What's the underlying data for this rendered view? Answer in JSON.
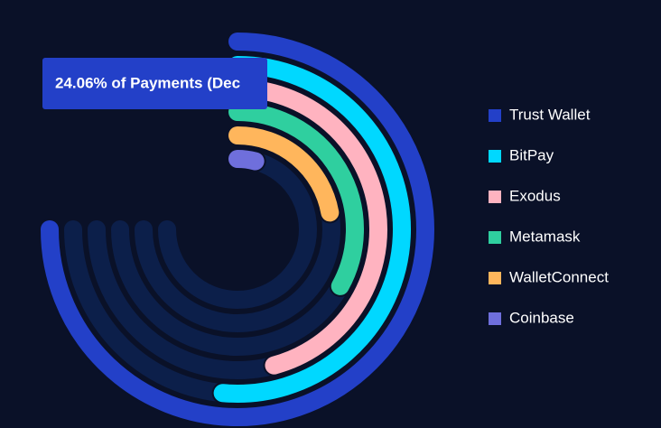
{
  "chart_data": {
    "type": "radialBar",
    "tooltip": "24.06% of Payments (Dec",
    "categories": [
      "Trust Wallet",
      "BitPay",
      "Exodus",
      "Metamask",
      "WalletConnect",
      "Coinbase"
    ],
    "values": [
      24.06,
      16.5,
      14.7,
      10.6,
      7.1,
      1.3
    ],
    "colors": [
      "#2340c8",
      "#00d8ff",
      "#ffb3c0",
      "#2fcf9f",
      "#ffb65c",
      "#6f6fdc"
    ]
  }
}
